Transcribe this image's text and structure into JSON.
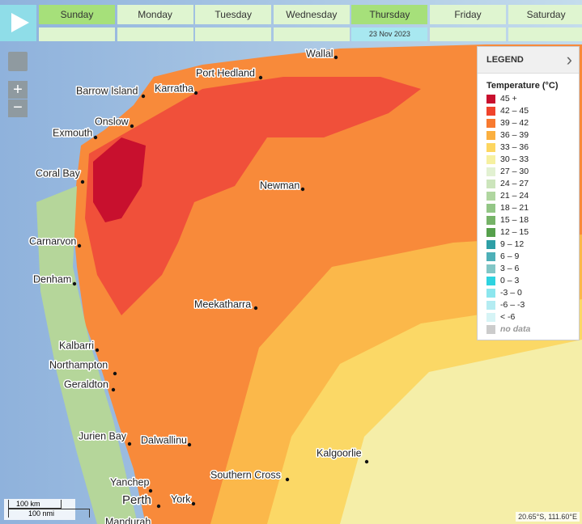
{
  "toolbar": {
    "days": [
      "Sunday",
      "Monday",
      "Tuesday",
      "Wednesday",
      "Thursday",
      "Friday",
      "Saturday"
    ],
    "selected_date": "23 Nov 2023"
  },
  "places": [
    "Wallal",
    "Port Hedland",
    "Barrow Island",
    "Karratha",
    "Onslow",
    "Exmouth",
    "Coral Bay",
    "Newman",
    "Carnarvon",
    "Denham",
    "Meekatharra",
    "Kalbarri",
    "Northampton",
    "Geraldton",
    "Jurien Bay",
    "Dalwallinu",
    "Kalgoorlie",
    "Southern Cross",
    "Yanchep",
    "Perth",
    "York",
    "Mandurah"
  ],
  "legend": {
    "title": "LEGEND",
    "heading": "Temperature (°C)",
    "items": [
      {
        "label": "45 +",
        "color": "#c8102e"
      },
      {
        "label": "42 – 45",
        "color": "#f0442c"
      },
      {
        "label": "39 – 42",
        "color": "#f87a30"
      },
      {
        "label": "36 – 39",
        "color": "#fbb040"
      },
      {
        "label": "33 – 36",
        "color": "#fdd660"
      },
      {
        "label": "30 – 33",
        "color": "#f6f0a0"
      },
      {
        "label": "27 – 30",
        "color": "#e2f1d2"
      },
      {
        "label": "24 – 27",
        "color": "#cce5bc"
      },
      {
        "label": "21 – 24",
        "color": "#b0d6a0"
      },
      {
        "label": "18 – 21",
        "color": "#93c686"
      },
      {
        "label": "15 – 18",
        "color": "#76b368"
      },
      {
        "label": "12 – 15",
        "color": "#56a04c"
      },
      {
        "label": "9 – 12",
        "color": "#2e9fa6"
      },
      {
        "label": "6 – 9",
        "color": "#4eb0b8"
      },
      {
        "label": "3 – 6",
        "color": "#82c6c6"
      },
      {
        "label": "0 – 3",
        "color": "#2ed3e0"
      },
      {
        "label": "-3 – 0",
        "color": "#8ce6ee"
      },
      {
        "label": "-6 – -3",
        "color": "#b4ecf2"
      },
      {
        "label": "< -6",
        "color": "#d6f4f6"
      },
      {
        "label": "no data",
        "color": "#cccccc"
      }
    ]
  },
  "scale": {
    "km": "100 km",
    "nmi": "100 nmi"
  },
  "coordinates": "20.65°S, 111.60°E"
}
